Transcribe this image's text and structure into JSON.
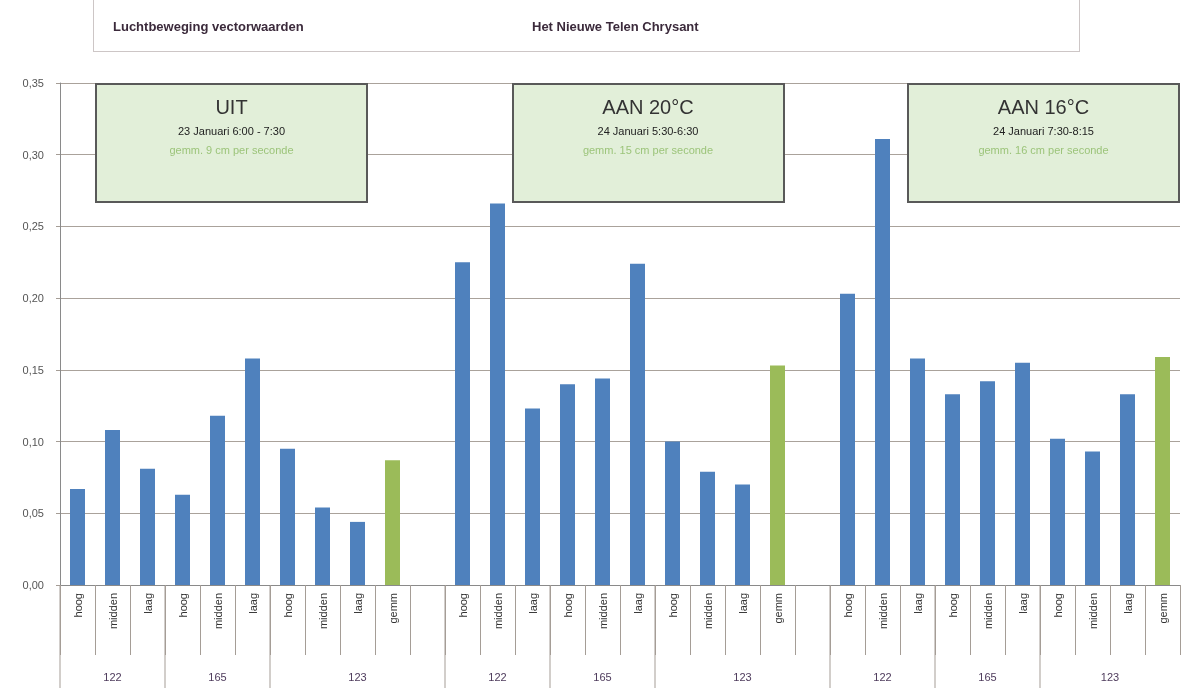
{
  "chart_data": {
    "type": "bar",
    "title": "Luchtbeweging vectorwaarden",
    "subtitle": "Het Nieuwe Telen Chrysant",
    "categories": [
      "hoog",
      "midden",
      "laag",
      "hoog",
      "midden",
      "laag",
      "hoog",
      "midden",
      "laag",
      "gemm",
      null,
      "hoog",
      "midden",
      "laag",
      "hoog",
      "midden",
      "laag",
      "hoog",
      "midden",
      "laag",
      "gemm",
      null,
      "hoog",
      "midden",
      "laag",
      "hoog",
      "midden",
      "laag",
      "hoog",
      "midden",
      "laag",
      "gemm"
    ],
    "values": [
      0.067,
      0.108,
      0.081,
      0.063,
      0.118,
      0.158,
      0.095,
      0.054,
      0.044,
      0.087,
      null,
      0.225,
      0.266,
      0.123,
      0.14,
      0.144,
      0.224,
      0.1,
      0.079,
      0.07,
      0.153,
      null,
      0.203,
      0.311,
      0.158,
      0.133,
      0.142,
      0.155,
      0.102,
      0.093,
      0.133,
      0.159
    ],
    "colors": [
      "#4f81bd",
      "#4f81bd",
      "#4f81bd",
      "#4f81bd",
      "#4f81bd",
      "#4f81bd",
      "#4f81bd",
      "#4f81bd",
      "#4f81bd",
      "#9bbb59",
      null,
      "#4f81bd",
      "#4f81bd",
      "#4f81bd",
      "#4f81bd",
      "#4f81bd",
      "#4f81bd",
      "#4f81bd",
      "#4f81bd",
      "#4f81bd",
      "#9bbb59",
      null,
      "#4f81bd",
      "#4f81bd",
      "#4f81bd",
      "#4f81bd",
      "#4f81bd",
      "#4f81bd",
      "#4f81bd",
      "#4f81bd",
      "#4f81bd",
      "#9bbb59"
    ],
    "ylim": [
      0,
      0.35
    ],
    "yticks": [
      {
        "value": 0,
        "label": "0,00"
      },
      {
        "value": 0.05,
        "label": "0,05"
      },
      {
        "value": 0.1,
        "label": "0,10"
      },
      {
        "value": 0.15,
        "label": "0,15"
      },
      {
        "value": 0.2,
        "label": "0,20"
      },
      {
        "value": 0.25,
        "label": "0,25"
      },
      {
        "value": 0.3,
        "label": "0,30"
      },
      {
        "value": 0.35,
        "label": "0,35"
      }
    ],
    "grid": "y",
    "annotations": [
      "UIT",
      "23 Januari 6:00 - 7:30",
      "gemm. 9 cm per seconde",
      "122",
      "165",
      "123",
      "AAN 20°C",
      "24 Januari 5:30-6:30",
      "gemm. 15 cm per seconde",
      "122",
      "165",
      "123",
      "AAN 16°C",
      "24 Januari 7:30-8:15",
      "gemm. 16 cm per seconde",
      "122",
      "165",
      "123"
    ]
  }
}
